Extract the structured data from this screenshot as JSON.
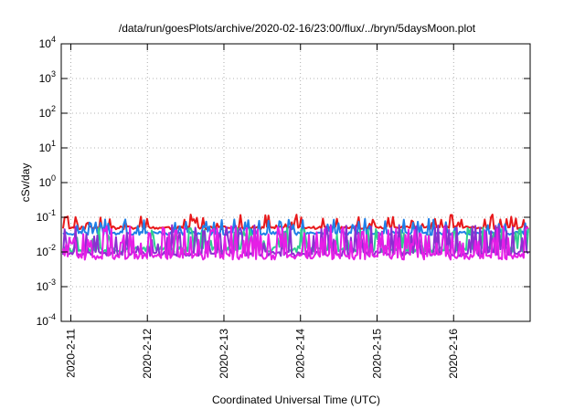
{
  "chart_data": {
    "type": "line",
    "title": "/data/run/goesPlots/archive/2020-02-16/23:00/flux/../bryn/5daysMoon.plot",
    "xlabel": "Coordinated Universal Time (UTC)",
    "ylabel": "cSv/day",
    "yscale": "log",
    "ylim": [
      0.0001,
      10000
    ],
    "xlim": [
      "2020-02-10T21:00",
      "2020-02-17T00:00"
    ],
    "x_ticks": [
      "2020-2-11",
      "2020-2-12",
      "2020-2-13",
      "2020-2-14",
      "2020-2-15",
      "2020-2-16"
    ],
    "y_ticks": [
      {
        "base": "10",
        "exp": "-4"
      },
      {
        "base": "10",
        "exp": "-3"
      },
      {
        "base": "10",
        "exp": "-2"
      },
      {
        "base": "10",
        "exp": "-1"
      },
      {
        "base": "10",
        "exp": "0"
      },
      {
        "base": "10",
        "exp": "1"
      },
      {
        "base": "10",
        "exp": "2"
      },
      {
        "base": "10",
        "exp": "3"
      },
      {
        "base": "10",
        "exp": "4"
      }
    ],
    "grid": true,
    "series": [
      {
        "color": "#e8191b",
        "baseline": 0.05,
        "noise": 0.1,
        "spike_prob": 0.22,
        "spike_max": 0.12,
        "seed": 11
      },
      {
        "color": "#1f7fe8",
        "baseline": 0.035,
        "noise": 0.12,
        "spike_prob": 0.22,
        "spike_max": 0.09,
        "seed": 23
      },
      {
        "color": "#2fcf8f",
        "baseline": 0.012,
        "noise": 0.18,
        "spike_prob": 0.28,
        "spike_max": 0.05,
        "seed": 37
      },
      {
        "color": "#8b2fd0",
        "baseline": 0.009,
        "noise": 0.16,
        "spike_prob": 0.3,
        "spike_max": 0.06,
        "seed": 41
      },
      {
        "color": "#e61ee6",
        "baseline": 0.0075,
        "noise": 0.2,
        "spike_prob": 0.34,
        "spike_max": 0.055,
        "seed": 53
      }
    ]
  }
}
